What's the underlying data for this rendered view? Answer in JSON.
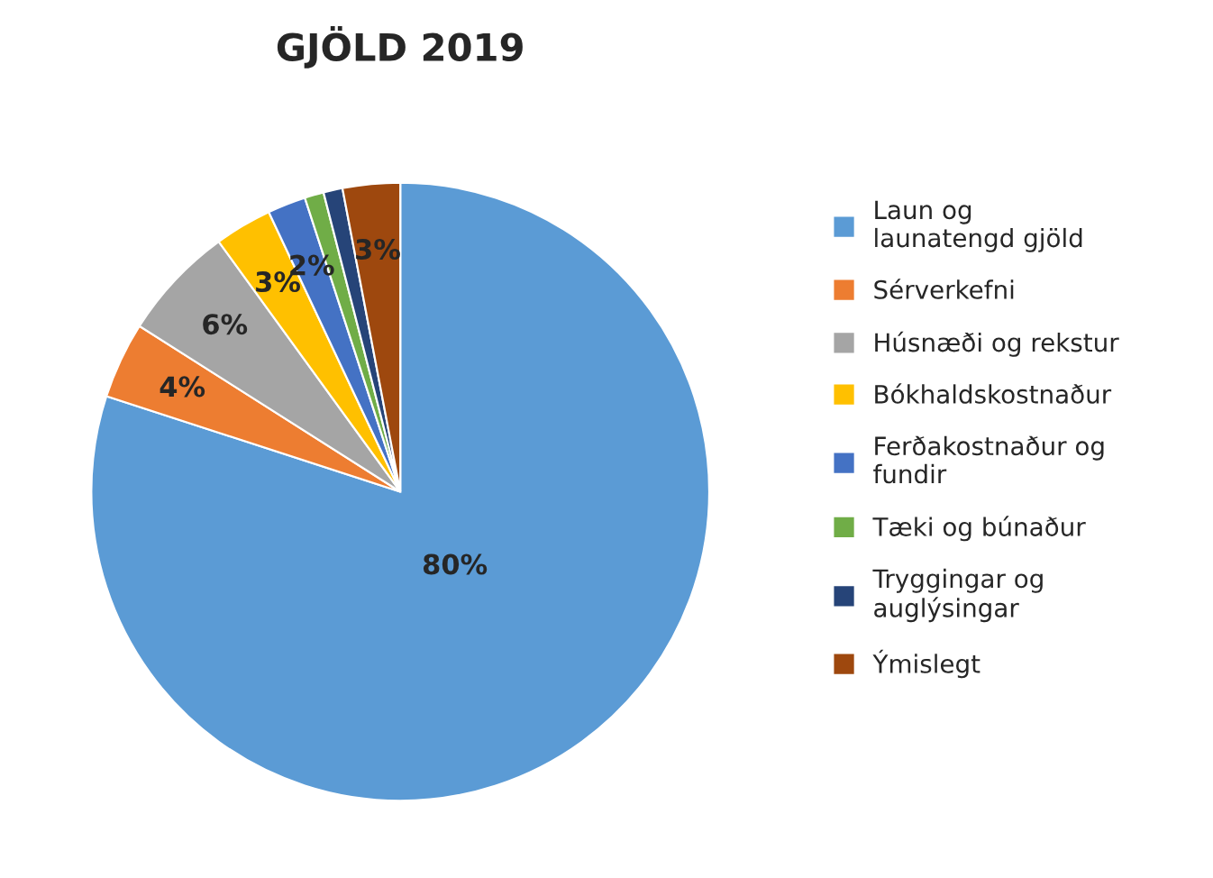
{
  "chart_data": {
    "type": "pie",
    "title": "GJÖLD 2019",
    "categories": [
      "Laun og launatengd gjöld",
      "Sérverkefni",
      "Húsnæði og rekstur",
      "Bókhaldskostnaður",
      "Ferðakostnaður og fundir",
      "Tæki og búnaður",
      "Tryggingar og auglýsingar",
      "Ýmislegt"
    ],
    "values": [
      80,
      4,
      6,
      3,
      2,
      1,
      1,
      3
    ],
    "value_labels": [
      "80%",
      "4%",
      "6%",
      "3%",
      "2%",
      null,
      null,
      "3%"
    ],
    "colors": [
      "#5b9bd5",
      "#ed7d31",
      "#a5a5a5",
      "#ffc000",
      "#4472c4",
      "#70ad47",
      "#264478",
      "#9e480e"
    ],
    "legend": "right"
  }
}
